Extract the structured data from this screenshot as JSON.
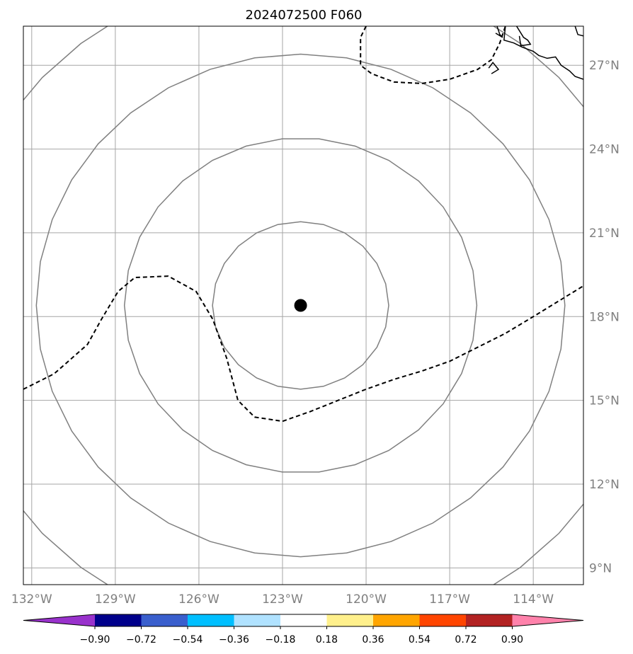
{
  "title": "2024072500 F060",
  "map": {
    "lon_range": [
      -132.3,
      -112.2
    ],
    "lat_range": [
      8.4,
      28.4
    ],
    "lon_ticks": [
      {
        "value": -132,
        "label": "132°W"
      },
      {
        "value": -129,
        "label": "129°W"
      },
      {
        "value": -126,
        "label": "126°W"
      },
      {
        "value": -123,
        "label": "123°W"
      },
      {
        "value": -120,
        "label": "120°W"
      },
      {
        "value": -117,
        "label": "117°W"
      },
      {
        "value": -114,
        "label": "114°W"
      }
    ],
    "lat_ticks": [
      {
        "value": 27,
        "label": "27°N"
      },
      {
        "value": 24,
        "label": "24°N"
      },
      {
        "value": 21,
        "label": "21°N"
      },
      {
        "value": 18,
        "label": "18°N"
      },
      {
        "value": 15,
        "label": "15°N"
      },
      {
        "value": 12,
        "label": "12°N"
      },
      {
        "value": 9,
        "label": "9°N"
      }
    ],
    "storm_center": {
      "lon": -122.35,
      "lat": 18.4
    },
    "range_rings_deg": [
      3,
      6,
      9,
      12
    ],
    "gridline_color": "#a6a6a6",
    "ring_color": "#808080",
    "dashed_contour": {
      "style": "dashed",
      "color": "#000000",
      "segments": [
        [
          [
            -132.3,
            15.4
          ],
          [
            -131.2,
            15.95
          ],
          [
            -130.0,
            17.0
          ],
          [
            -129.5,
            17.9
          ],
          [
            -128.9,
            18.9
          ],
          [
            -128.3,
            19.4
          ],
          [
            -127.1,
            19.45
          ],
          [
            -126.1,
            18.9
          ],
          [
            -125.5,
            17.9
          ],
          [
            -125.0,
            16.5
          ],
          [
            -124.6,
            15.0
          ],
          [
            -124.0,
            14.4
          ],
          [
            -123.0,
            14.25
          ],
          [
            -122.0,
            14.6
          ],
          [
            -121.0,
            15.0
          ],
          [
            -120.0,
            15.4
          ],
          [
            -119.0,
            15.75
          ],
          [
            -118.0,
            16.05
          ],
          [
            -117.0,
            16.4
          ],
          [
            -116.0,
            16.9
          ],
          [
            -115.0,
            17.4
          ],
          [
            -114.0,
            18.0
          ],
          [
            -112.2,
            19.1
          ]
        ],
        [
          [
            -120.0,
            28.4
          ],
          [
            -120.2,
            28.0
          ],
          [
            -120.2,
            27.0
          ],
          [
            -119.8,
            26.7
          ],
          [
            -119.0,
            26.4
          ],
          [
            -118.0,
            26.35
          ],
          [
            -117.0,
            26.5
          ],
          [
            -116.0,
            26.85
          ],
          [
            -115.5,
            27.2
          ],
          [
            -115.2,
            27.8
          ],
          [
            -115.0,
            28.4
          ]
        ]
      ]
    },
    "coastline": {
      "color": "#000000",
      "segments": [
        [
          [
            -115.0,
            28.4
          ],
          [
            -115.05,
            27.9
          ],
          [
            -114.7,
            27.8
          ],
          [
            -114.4,
            27.65
          ],
          [
            -114.0,
            27.5
          ],
          [
            -113.8,
            27.35
          ],
          [
            -113.5,
            27.25
          ],
          [
            -113.2,
            27.3
          ],
          [
            -113.0,
            27.0
          ],
          [
            -112.7,
            26.8
          ],
          [
            -112.5,
            26.6
          ],
          [
            -112.2,
            26.5
          ]
        ],
        [
          [
            -114.6,
            28.4
          ],
          [
            -114.35,
            28.0
          ],
          [
            -114.2,
            27.9
          ],
          [
            -114.1,
            27.75
          ],
          [
            -114.45,
            27.7
          ],
          [
            -114.5,
            28.05
          ]
        ],
        [
          [
            -115.6,
            26.9
          ],
          [
            -115.45,
            27.1
          ],
          [
            -115.25,
            26.85
          ],
          [
            -115.5,
            26.7
          ]
        ],
        [
          [
            -112.5,
            28.4
          ],
          [
            -112.4,
            28.1
          ],
          [
            -112.2,
            28.05
          ]
        ],
        [
          [
            -115.3,
            28.4
          ],
          [
            -115.2,
            28.1
          ],
          [
            -115.1,
            28.0
          ],
          [
            -115.35,
            28.15
          ]
        ]
      ]
    }
  },
  "colorbar": {
    "ticks": [
      "−0.90",
      "−0.72",
      "−0.54",
      "−0.36",
      "−0.18",
      "0.18",
      "0.36",
      "0.54",
      "0.72",
      "0.90"
    ],
    "bins": [
      {
        "color": "#9932cc"
      },
      {
        "color": "#00008b"
      },
      {
        "color": "#3a5fcd"
      },
      {
        "color": "#00bfff"
      },
      {
        "color": "#b0e2ff"
      },
      {
        "color": "#ffffff"
      },
      {
        "color": "#fff08c"
      },
      {
        "color": "#ffa500"
      },
      {
        "color": "#ff4500"
      },
      {
        "color": "#b22222"
      },
      {
        "color": "#ff82ab"
      }
    ]
  }
}
